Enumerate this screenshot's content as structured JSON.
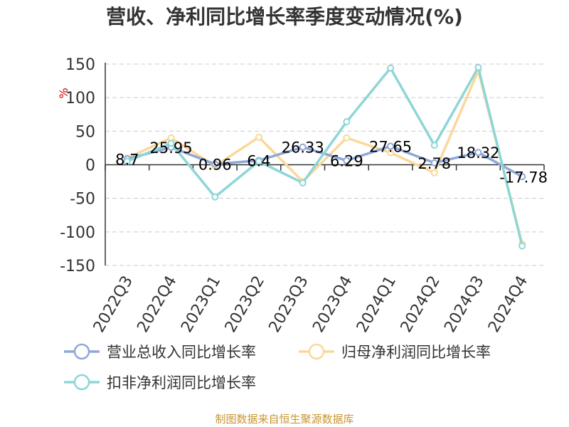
{
  "chart_data": {
    "type": "line",
    "title": "营收、净利同比增长率季度变动情况(%)",
    "ylabel": "%",
    "xlabel": "",
    "categories": [
      "2022Q3",
      "2022Q4",
      "2023Q1",
      "2023Q2",
      "2023Q3",
      "2023Q4",
      "2024Q1",
      "2024Q2",
      "2024Q3",
      "2024Q4"
    ],
    "ylim": [
      -150,
      150
    ],
    "yticks": [
      150,
      100,
      50,
      0,
      -50,
      -100,
      -150
    ],
    "grid": true,
    "legend_position": "bottom",
    "series": [
      {
        "name": "营业总收入同比增长率",
        "color": "#8fa8d8",
        "values": [
          8.7,
          25.95,
          0.96,
          6.4,
          26.33,
          6.29,
          27.65,
          2.78,
          18.32,
          -17.78
        ],
        "labels": [
          "8.7",
          "25.95",
          "0.96",
          "6.4",
          "26.33",
          "6.29",
          "27.65",
          "2.78",
          "18.32",
          "-17.78"
        ]
      },
      {
        "name": "归母净利润同比增长率",
        "color": "#fbd89a",
        "values": [
          10,
          40,
          -2,
          41,
          -25,
          40,
          18,
          -12,
          140,
          -118
        ]
      },
      {
        "name": "扣非净利润同比增长率",
        "color": "#8ed6d6",
        "values": [
          5,
          32,
          -48,
          5,
          -27,
          64,
          144,
          29,
          145,
          -121
        ]
      }
    ]
  },
  "source": "制图数据来自恒生聚源数据库"
}
